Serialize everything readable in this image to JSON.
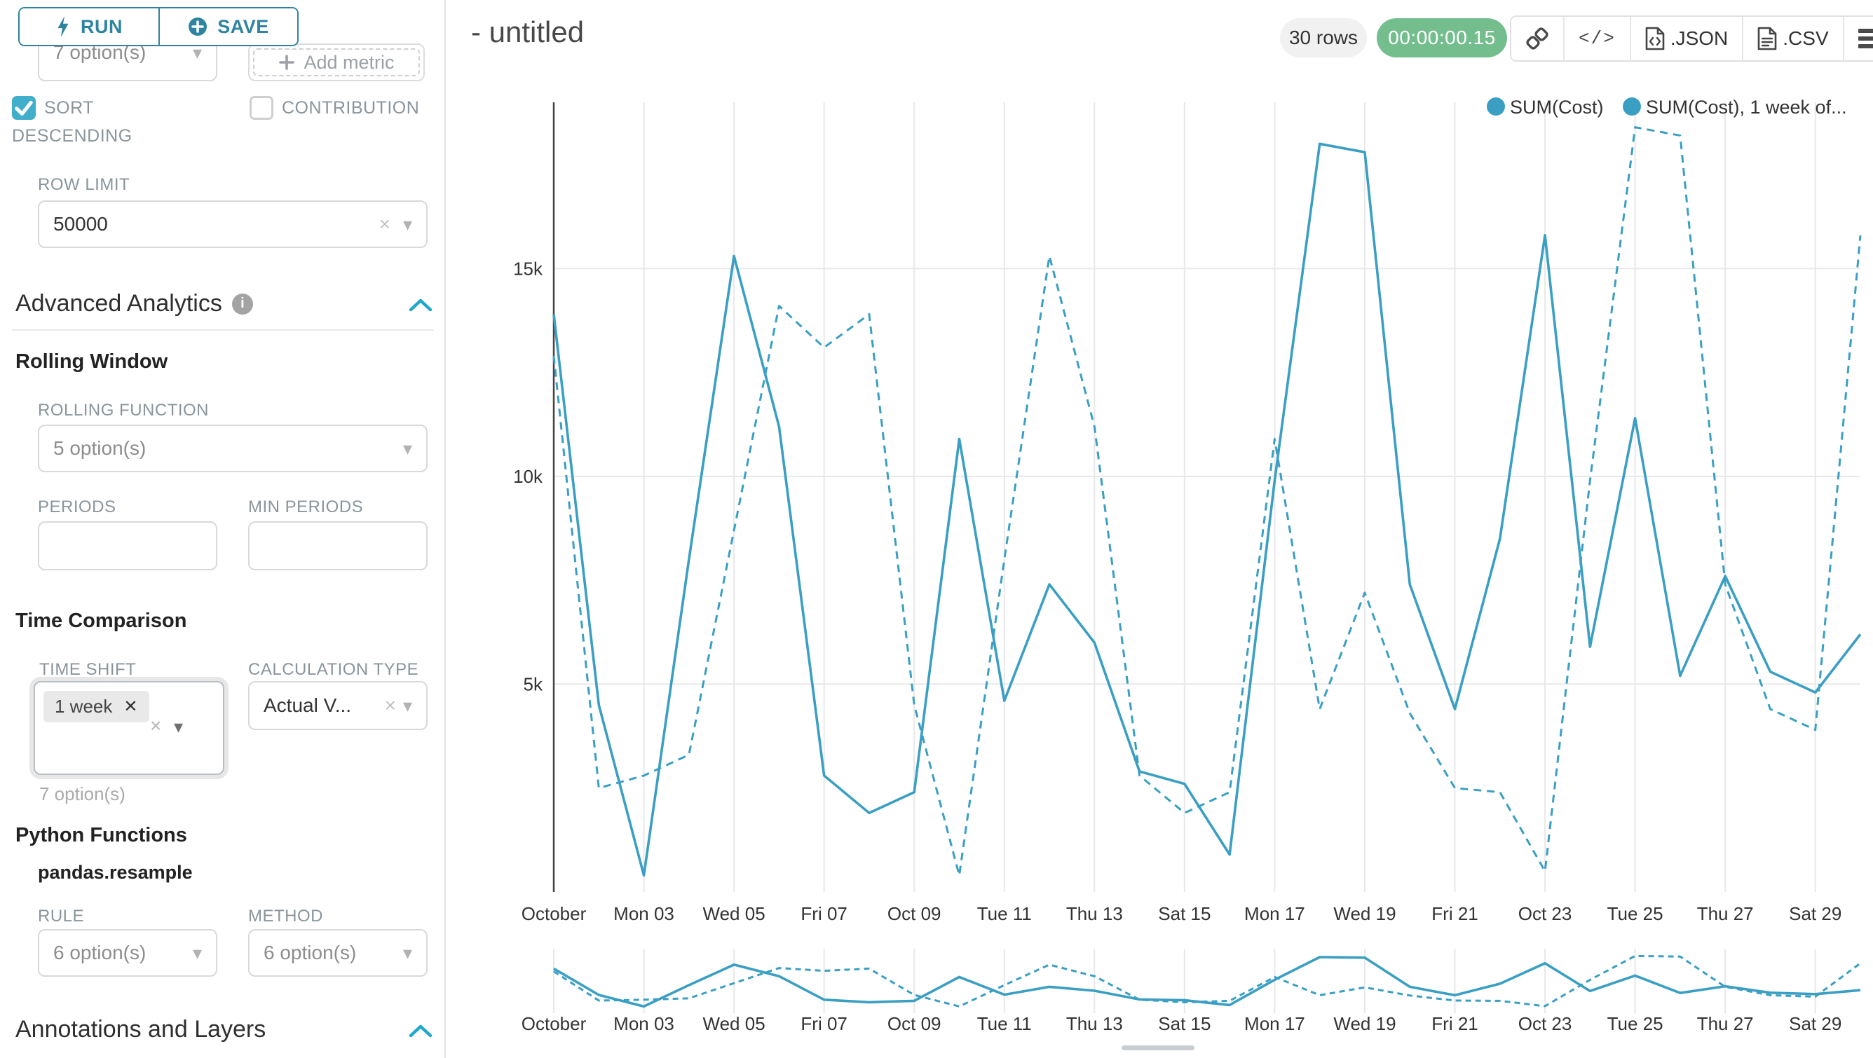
{
  "panel": {
    "run_label": "RUN",
    "save_label": "SAVE",
    "metric_select_value": "7 option(s)",
    "add_metric_label": "Add metric",
    "sort_descending_label": "SORT DESCENDING",
    "contribution_label": "CONTRIBUTION",
    "row_limit_label": "ROW LIMIT",
    "row_limit_value": "50000",
    "advanced_analytics_title": "Advanced Analytics",
    "rolling_window_title": "Rolling Window",
    "rolling_function_label": "ROLLING FUNCTION",
    "rolling_function_value": "5 option(s)",
    "periods_label": "PERIODS",
    "min_periods_label": "MIN PERIODS",
    "time_comparison_title": "Time Comparison",
    "time_shift_label": "TIME SHIFT",
    "time_shift_tag": "1 week",
    "time_shift_helper": "7 option(s)",
    "calculation_type_label": "CALCULATION TYPE",
    "calculation_type_value": "Actual V...",
    "python_functions_title": "Python Functions",
    "python_function_name": "pandas.resample",
    "rule_label": "RULE",
    "rule_value": "6 option(s)",
    "method_label": "METHOD",
    "method_value": "6 option(s)",
    "annotations_title": "Annotations and Layers"
  },
  "header": {
    "title": "- untitled",
    "rows_badge": "30 rows",
    "timer_badge": "00:00:00.15",
    "json_label": ".JSON",
    "csv_label": ".CSV",
    "accent_teal": "#1fa8c9",
    "badge_green": "#74be8e"
  },
  "chart_data": {
    "type": "line",
    "title": "",
    "xlabel": "",
    "ylabel": "",
    "grid": true,
    "legend_position": "top-right",
    "line_color": "#3a9fc2",
    "ylim": [
      0,
      19000
    ],
    "y_ticks": [
      {
        "value": 5000,
        "label": "5k"
      },
      {
        "value": 10000,
        "label": "10k"
      },
      {
        "value": 15000,
        "label": "15k"
      }
    ],
    "x": [
      "Oct 01",
      "Oct 02",
      "Oct 03",
      "Oct 04",
      "Oct 05",
      "Oct 06",
      "Oct 07",
      "Oct 08",
      "Oct 09",
      "Oct 10",
      "Oct 11",
      "Oct 12",
      "Oct 13",
      "Oct 14",
      "Oct 15",
      "Oct 16",
      "Oct 17",
      "Oct 18",
      "Oct 19",
      "Oct 20",
      "Oct 21",
      "Oct 22",
      "Oct 23",
      "Oct 24",
      "Oct 25",
      "Oct 26",
      "Oct 27",
      "Oct 28",
      "Oct 29",
      "Oct 30"
    ],
    "x_tick_labels": [
      "October",
      "Mon 03",
      "Wed 05",
      "Fri 07",
      "Oct 09",
      "Tue 11",
      "Thu 13",
      "Sat 15",
      "Mon 17",
      "Wed 19",
      "Fri 21",
      "Oct 23",
      "Tue 25",
      "Thu 27",
      "Sat 29"
    ],
    "series": [
      {
        "name": "SUM(Cost)",
        "style": "solid",
        "values": [
          13900,
          4500,
          400,
          8000,
          15300,
          11200,
          2800,
          1900,
          2400,
          10900,
          4600,
          7400,
          6000,
          2900,
          2600,
          900,
          9900,
          18000,
          17800,
          7400,
          4400,
          8500,
          15800,
          5900,
          11400,
          5200,
          7600,
          5300,
          4800,
          6200
        ]
      },
      {
        "name": "SUM(Cost), 1 week of...",
        "style": "dashed",
        "values": [
          12900,
          2500,
          2800,
          3300,
          8700,
          14100,
          13100,
          13900,
          4500,
          400,
          8000,
          15300,
          11200,
          2800,
          1900,
          2400,
          10900,
          4400,
          7200,
          4300,
          2500,
          2400,
          500,
          9900,
          18400,
          18200,
          7400,
          4400,
          3900,
          15800
        ]
      }
    ]
  }
}
